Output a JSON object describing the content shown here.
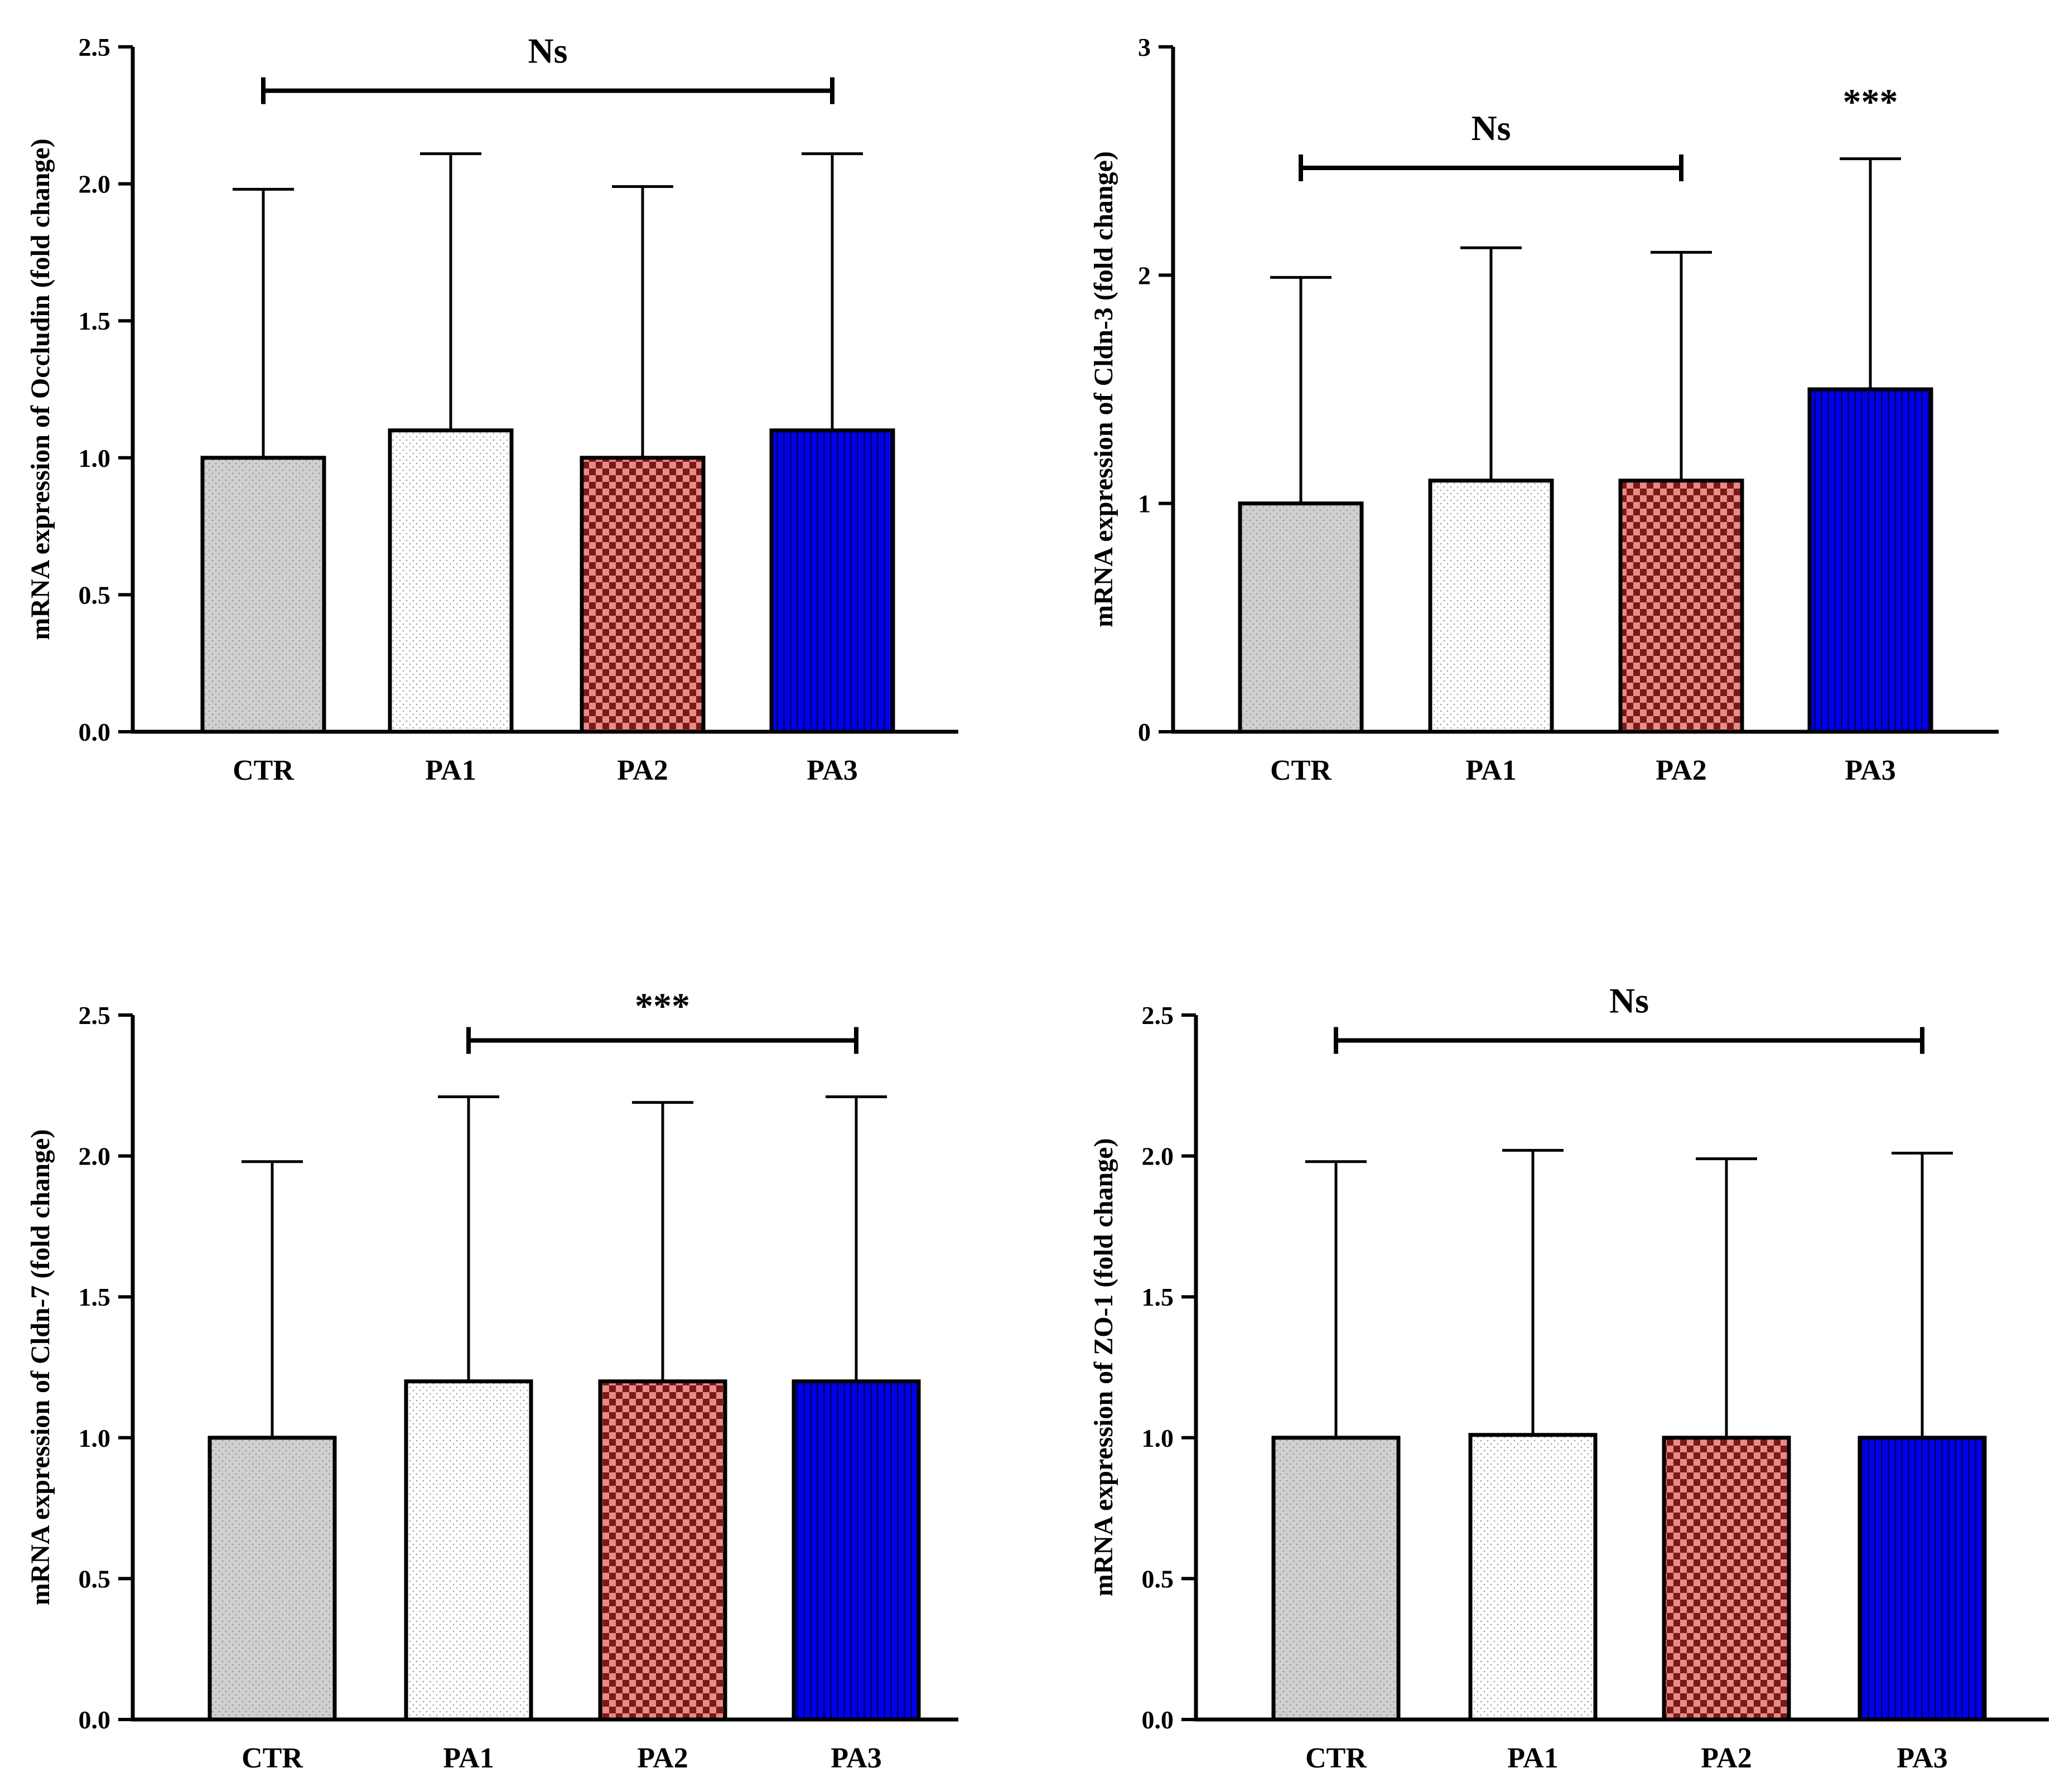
{
  "colors": {
    "CTR": "#d0d0d0",
    "PA1": "#ffffff",
    "PA2": "#e88a86",
    "PA3": "#0000ee"
  },
  "chart_data": [
    {
      "type": "bar",
      "ylabel": "mRNA expression of Occludin (fold change)",
      "categories": [
        "CTR",
        "PA1",
        "PA2",
        "PA3"
      ],
      "values": [
        1.0,
        1.1,
        1.0,
        1.1
      ],
      "error_upper": [
        1.98,
        2.11,
        1.99,
        2.11
      ],
      "ylim": [
        0,
        2.5
      ],
      "yticks": [
        "0.0",
        "0.5",
        "1.0",
        "1.5",
        "2.0",
        "2.5"
      ],
      "annotations": [
        {
          "text": "Ns",
          "from": 0,
          "to": 3,
          "y": 2.34,
          "bracket": true
        }
      ]
    },
    {
      "type": "bar",
      "ylabel": "mRNA expression of Cldn-3 (fold change)",
      "categories": [
        "CTR",
        "PA1",
        "PA2",
        "PA3"
      ],
      "values": [
        1.0,
        1.1,
        1.1,
        1.5
      ],
      "error_upper": [
        1.99,
        2.12,
        2.1,
        2.51
      ],
      "ylim": [
        0,
        3
      ],
      "yticks": [
        "0",
        "1",
        "2",
        "3"
      ],
      "annotations": [
        {
          "text": "Ns",
          "from": 0,
          "to": 2,
          "y": 2.47,
          "bracket": true
        },
        {
          "text": "***",
          "from": 3,
          "to": 3,
          "y": 2.75,
          "bracket": false
        }
      ]
    },
    {
      "type": "bar",
      "ylabel": "mRNA expression of Cldn-7 (fold change)",
      "categories": [
        "CTR",
        "PA1",
        "PA2",
        "PA3"
      ],
      "values": [
        1.0,
        1.2,
        1.2,
        1.2
      ],
      "error_upper": [
        1.98,
        2.21,
        2.19,
        2.21
      ],
      "ylim": [
        0,
        2.5
      ],
      "yticks": [
        "0.0",
        "0.5",
        "1.0",
        "1.5",
        "2.0",
        "2.5"
      ],
      "annotations": [
        {
          "text": "***",
          "from": 1,
          "to": 3,
          "y": 2.41,
          "bracket": true
        }
      ]
    },
    {
      "type": "bar",
      "ylabel": "mRNA expression of ZO-1 (fold change)",
      "categories": [
        "CTR",
        "PA1",
        "PA2",
        "PA3"
      ],
      "values": [
        1.0,
        1.01,
        1.0,
        1.0
      ],
      "error_upper": [
        1.98,
        2.02,
        1.99,
        2.01
      ],
      "ylim": [
        0,
        2.5
      ],
      "yticks": [
        "0.0",
        "0.5",
        "1.0",
        "1.5",
        "2.0",
        "2.5"
      ],
      "annotations": [
        {
          "text": "Ns",
          "from": 0,
          "to": 3,
          "y": 2.41,
          "bracket": true
        }
      ]
    }
  ]
}
